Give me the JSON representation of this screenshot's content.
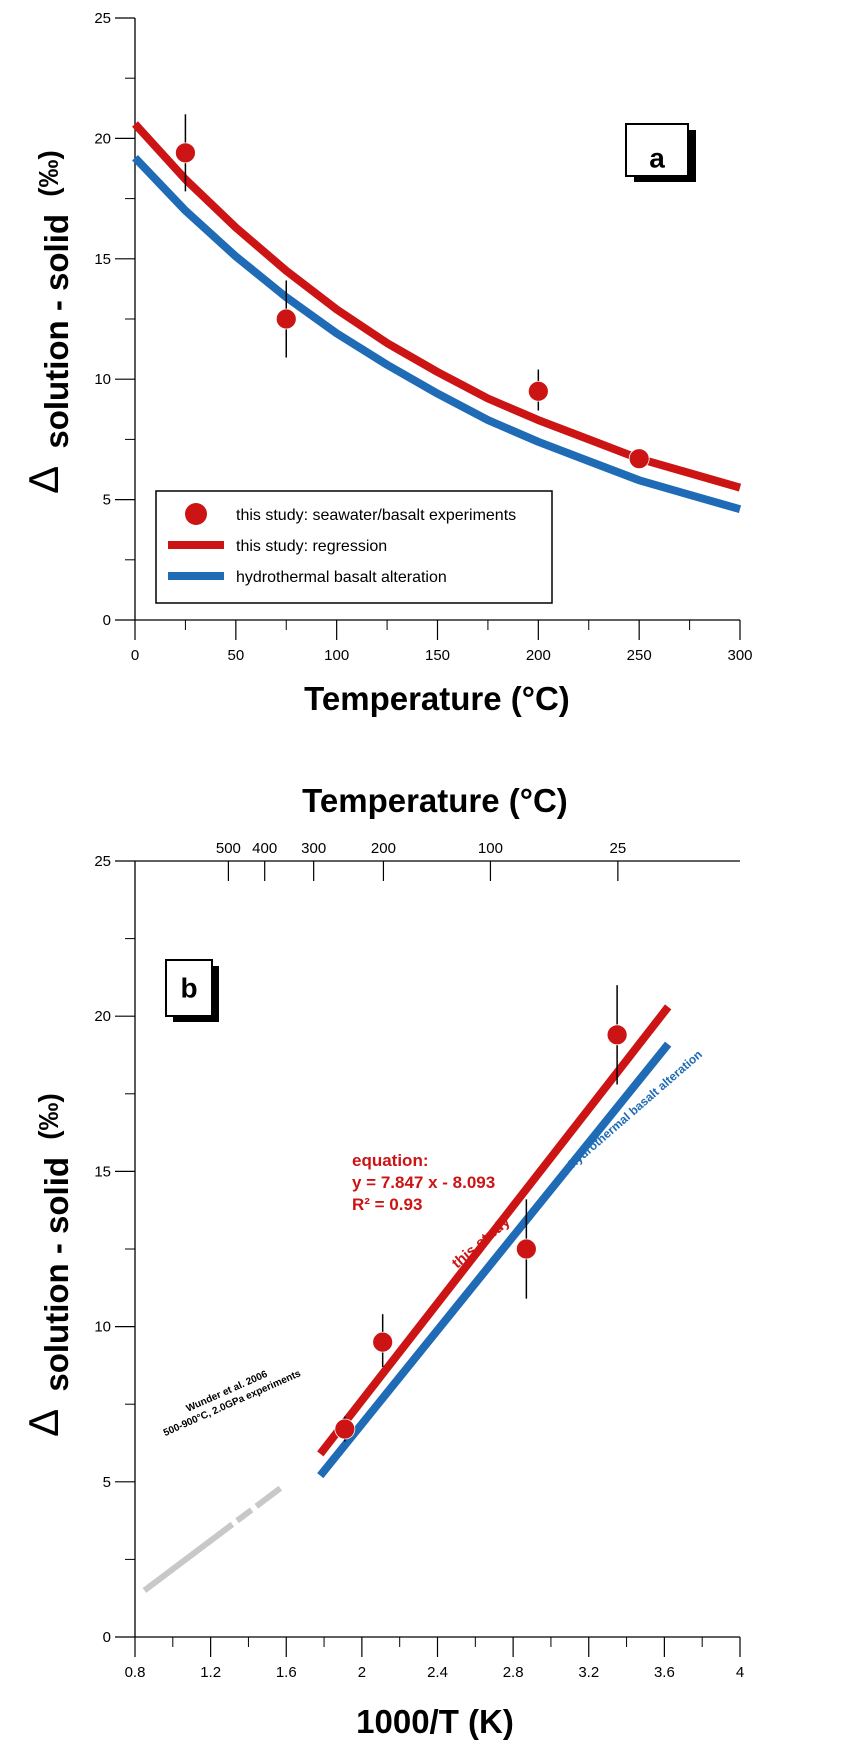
{
  "colors": {
    "red": "#CC1414",
    "blue": "#1F6BB5",
    "grey": "#C8C8C8",
    "black": "#000000"
  },
  "chart_data": [
    {
      "type": "scatter",
      "panel_label": "a",
      "xlabel": "Temperature (°C)",
      "ylabel_delta": "Δ",
      "ylabel_main": "solution - solid",
      "ylabel_unit": "(‰)",
      "xlim": [
        0,
        300
      ],
      "ylim": [
        0,
        25
      ],
      "x_ticks": [
        0,
        50,
        100,
        150,
        200,
        250,
        300
      ],
      "x_tick_labels": [
        "0",
        "50",
        "100",
        "150",
        "200",
        "250",
        "300"
      ],
      "y_ticks": [
        0,
        5,
        10,
        15,
        20,
        25
      ],
      "y_tick_labels": [
        "0",
        "5",
        "10",
        "15",
        "20",
        "25"
      ],
      "series": [
        {
          "name": "this study: seawater/basalt experiments",
          "kind": "points",
          "color": "#CC1414",
          "points": [
            {
              "x": 25,
              "y": 19.4,
              "err_low": 17.8,
              "err_high": 21.0
            },
            {
              "x": 75,
              "y": 12.5,
              "err_low": 10.9,
              "err_high": 14.1
            },
            {
              "x": 200,
              "y": 9.5,
              "err_low": 8.7,
              "err_high": 10.4
            },
            {
              "x": 250,
              "y": 6.7,
              "err_low": 6.3,
              "err_high": 7.1
            }
          ]
        },
        {
          "name": "this study: regression",
          "kind": "curve",
          "color": "#CC1414",
          "x": [
            0,
            25,
            50,
            75,
            100,
            125,
            150,
            175,
            200,
            225,
            250,
            275,
            300
          ],
          "y": [
            20.6,
            18.3,
            16.3,
            14.5,
            12.9,
            11.5,
            10.3,
            9.2,
            8.3,
            7.5,
            6.7,
            6.1,
            5.5
          ]
        },
        {
          "name": "hydrothermal basalt alteration",
          "kind": "curve",
          "color": "#1F6BB5",
          "x": [
            0,
            25,
            50,
            75,
            100,
            125,
            150,
            175,
            200,
            225,
            250,
            275,
            300
          ],
          "y": [
            19.2,
            17.0,
            15.1,
            13.4,
            11.9,
            10.6,
            9.4,
            8.3,
            7.4,
            6.6,
            5.8,
            5.2,
            4.6
          ]
        }
      ]
    },
    {
      "type": "scatter",
      "panel_label": "b",
      "xlabel": "1000/T (K)",
      "x2label": "Temperature (°C)",
      "ylabel_delta": "Δ",
      "ylabel_main": "solution - solid",
      "ylabel_unit": "(‰)",
      "xlim": [
        0.8,
        4
      ],
      "ylim": [
        0,
        25
      ],
      "x_ticks": [
        0.8,
        1.2,
        1.6,
        2.0,
        2.4,
        2.8,
        3.2,
        3.6,
        4.0
      ],
      "x_tick_labels": [
        "0.8",
        "1.2",
        "1.6",
        "2",
        "2.4",
        "2.8",
        "3.2",
        "3.6",
        "4"
      ],
      "x_minor_ticks": [
        1.0,
        1.4,
        1.8,
        2.2,
        2.6,
        3.0,
        3.4,
        3.8
      ],
      "y_ticks": [
        0,
        5,
        10,
        15,
        20,
        25
      ],
      "y_tick_labels": [
        "0",
        "5",
        "10",
        "15",
        "20",
        "25"
      ],
      "top_ticks": [
        {
          "label": "500",
          "x": 1.294
        },
        {
          "label": "400",
          "x": 1.486
        },
        {
          "label": "300",
          "x": 1.745
        },
        {
          "label": "200",
          "x": 2.114
        },
        {
          "label": "100",
          "x": 2.68
        },
        {
          "label": "25",
          "x": 3.354
        }
      ],
      "equation": {
        "line1": "equation:",
        "line2": "y = 7.847 x - 8.093",
        "line3": "R² = 0.93"
      },
      "series": [
        {
          "name": "this study",
          "kind": "line",
          "color": "#CC1414",
          "x": [
            1.78,
            3.62
          ],
          "y": [
            5.9,
            20.3
          ]
        },
        {
          "name": "hydrothermal basalt alteration",
          "kind": "line",
          "color": "#1F6BB5",
          "x": [
            1.78,
            3.62
          ],
          "y": [
            5.2,
            19.1
          ]
        },
        {
          "name": "Wunder et al. 2006",
          "name_line2": "500-900°C, 2.0GPa experiments",
          "kind": "dashed-line",
          "color": "#C8C8C8",
          "x": [
            0.85,
            1.57
          ],
          "y": [
            1.5,
            4.8
          ]
        },
        {
          "name": "this study: seawater/basalt experiments",
          "kind": "points",
          "color": "#CC1414",
          "points": [
            {
              "x": 1.91,
              "y": 6.7,
              "err_low": 6.3,
              "err_high": 7.1
            },
            {
              "x": 2.11,
              "y": 9.5,
              "err_low": 8.7,
              "err_high": 10.4
            },
            {
              "x": 2.87,
              "y": 12.5,
              "err_low": 10.9,
              "err_high": 14.1
            },
            {
              "x": 3.35,
              "y": 19.4,
              "err_low": 17.8,
              "err_high": 21.0
            }
          ]
        }
      ]
    }
  ]
}
